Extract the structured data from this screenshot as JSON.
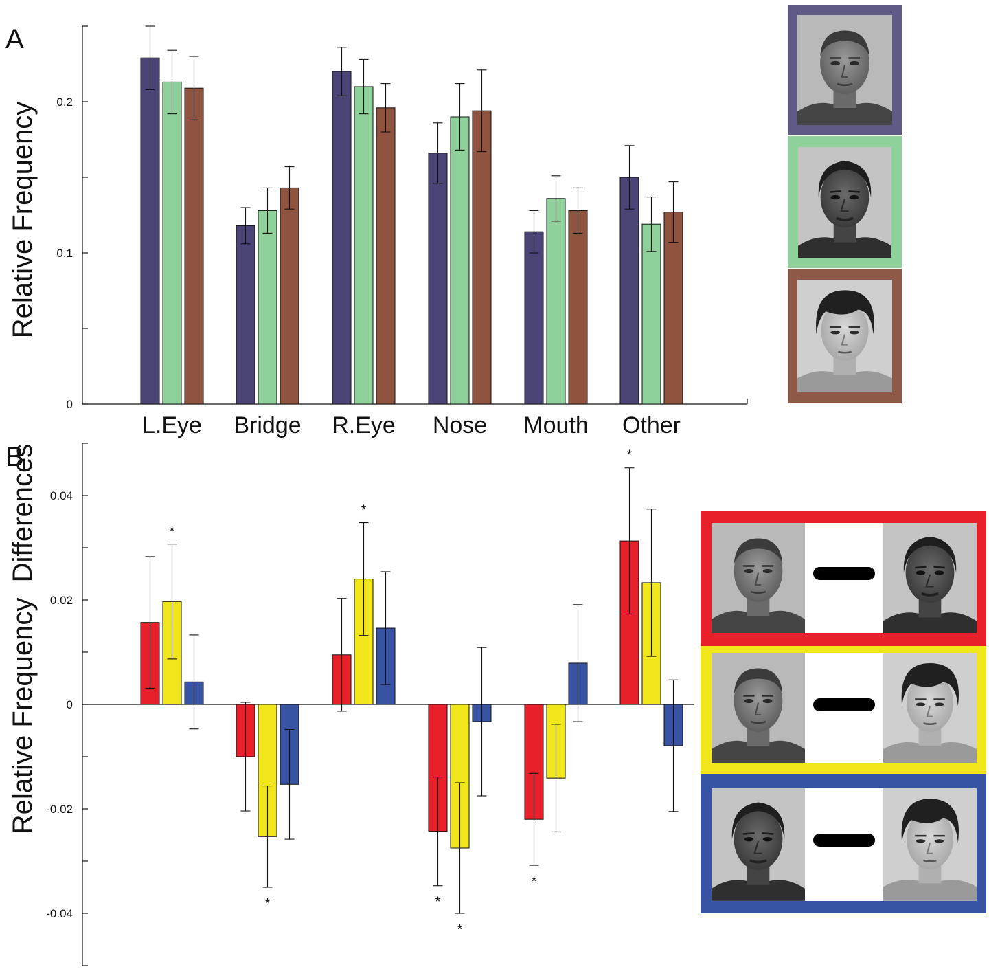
{
  "chart_data": [
    {
      "panel": "A",
      "type": "bar",
      "ylabel": "Relative Frequency",
      "categories": [
        "L.Eye",
        "Bridge",
        "R.Eye",
        "Nose",
        "Mouth",
        "Other"
      ],
      "ylim": [
        0,
        0.25
      ],
      "yticks": [
        {
          "value": 0,
          "label": "0"
        },
        {
          "value": 0.05,
          "label": ""
        },
        {
          "value": 0.1,
          "label": "0.1"
        },
        {
          "value": 0.15,
          "label": ""
        },
        {
          "value": 0.2,
          "label": "0.2"
        },
        {
          "value": 0.25,
          "label": ""
        }
      ],
      "series": [
        {
          "color": "#4b4577",
          "values": [
            0.229,
            0.118,
            0.22,
            0.166,
            0.114,
            0.15
          ],
          "errors": [
            0.021,
            0.012,
            0.016,
            0.02,
            0.014,
            0.021
          ]
        },
        {
          "color": "#8fd19a",
          "values": [
            0.213,
            0.128,
            0.21,
            0.19,
            0.136,
            0.119
          ],
          "errors": [
            0.021,
            0.015,
            0.018,
            0.022,
            0.015,
            0.018
          ]
        },
        {
          "color": "#8e5440",
          "values": [
            0.209,
            0.143,
            0.196,
            0.194,
            0.128,
            0.127
          ],
          "errors": [
            0.021,
            0.014,
            0.016,
            0.027,
            0.015,
            0.02
          ]
        }
      ],
      "legend_images": [
        "purple-framed face photo",
        "green-framed face photo",
        "brown-framed face photo"
      ]
    },
    {
      "panel": "B",
      "type": "bar",
      "ylabel": "Relative Frequency  Differences",
      "categories": [
        "L.Eye",
        "Bridge",
        "R.Eye",
        "Nose",
        "Mouth",
        "Other"
      ],
      "ylim": [
        -0.05,
        0.05
      ],
      "yticks": [
        {
          "value": -0.05,
          "label": ""
        },
        {
          "value": -0.04,
          "label": "-0.04"
        },
        {
          "value": -0.03,
          "label": ""
        },
        {
          "value": -0.02,
          "label": "-0.02"
        },
        {
          "value": -0.01,
          "label": ""
        },
        {
          "value": 0,
          "label": "0"
        },
        {
          "value": 0.01,
          "label": ""
        },
        {
          "value": 0.02,
          "label": "0.02"
        },
        {
          "value": 0.03,
          "label": ""
        },
        {
          "value": 0.04,
          "label": "0.04"
        },
        {
          "value": 0.05,
          "label": ""
        }
      ],
      "series": [
        {
          "color": "#e8202a",
          "values": [
            0.0157,
            -0.01,
            0.0095,
            -0.0243,
            -0.022,
            0.0313
          ],
          "errors": [
            0.0126,
            0.0104,
            0.0108,
            0.0104,
            0.0088,
            0.014
          ]
        },
        {
          "color": "#f1e51c",
          "values": [
            0.0197,
            -0.0253,
            0.024,
            -0.0275,
            -0.0141,
            0.0233
          ],
          "errors": [
            0.011,
            0.0097,
            0.0108,
            0.0125,
            0.0103,
            0.0141
          ]
        },
        {
          "color": "#3853a4",
          "values": [
            0.0043,
            -0.0153,
            0.0146,
            -0.0033,
            0.0079,
            -0.0079
          ],
          "errors": [
            0.009,
            0.0105,
            0.0108,
            0.0142,
            0.0112,
            0.0126
          ]
        }
      ],
      "significance_marker": "*",
      "significant": [
        {
          "category": 0,
          "series": 1
        },
        {
          "category": 1,
          "series": 1
        },
        {
          "category": 2,
          "series": 1
        },
        {
          "category": 3,
          "series": 0
        },
        {
          "category": 3,
          "series": 1
        },
        {
          "category": 4,
          "series": 0
        },
        {
          "category": 5,
          "series": 0
        }
      ],
      "legend_images": [
        "red-framed difference: face minus face",
        "yellow-framed difference: face minus face",
        "blue-framed difference: face minus face"
      ]
    }
  ],
  "labels": {
    "panel_a": "A",
    "panel_b": "B",
    "ylabel_a": "Relative Frequency",
    "ylabel_b": "Relative Frequency  Differences"
  }
}
